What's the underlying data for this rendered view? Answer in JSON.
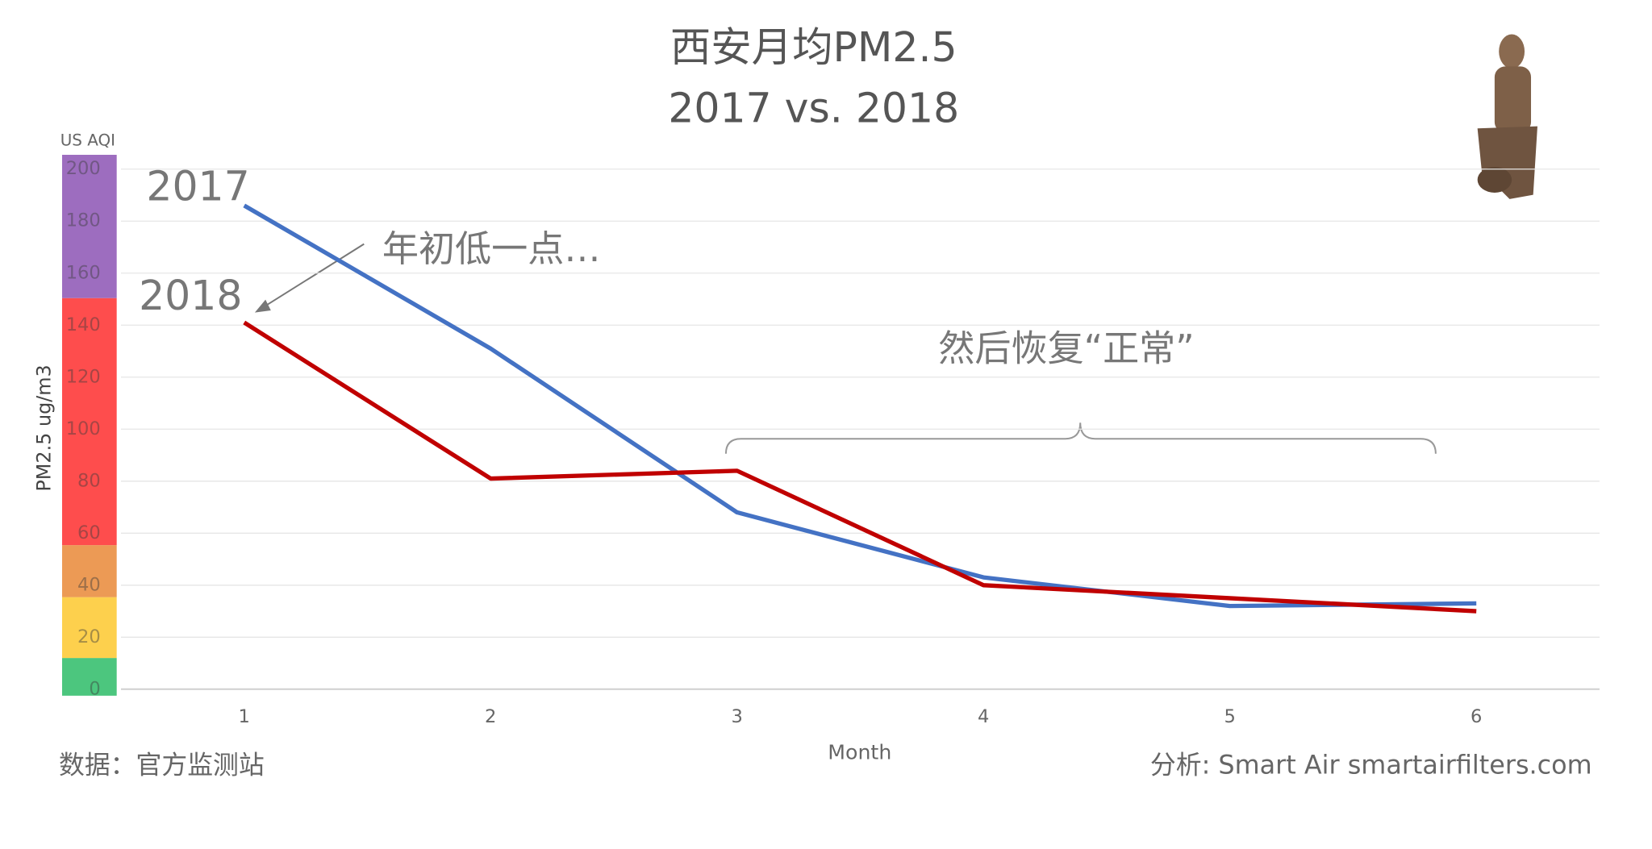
{
  "chart_data": {
    "type": "line",
    "title": "西安月均PM2.5",
    "subtitle": "2017 vs. 2018",
    "x_label": "Month",
    "y_label": "PM2.5 ug/m3",
    "aqi_label": "US AQI",
    "x": [
      1,
      2,
      3,
      4,
      5,
      6
    ],
    "xlim": [
      0.5,
      6.5
    ],
    "xticks": [
      1,
      2,
      3,
      4,
      5,
      6
    ],
    "ylim": [
      0,
      200
    ],
    "yticks": [
      0,
      20,
      40,
      60,
      80,
      100,
      120,
      140,
      160,
      180,
      200
    ],
    "grid": true,
    "series": [
      {
        "name": "2017",
        "color": "#4472c4",
        "values": [
          186,
          131,
          68,
          43,
          32,
          33
        ]
      },
      {
        "name": "2018",
        "color": "#c00000",
        "values": [
          141,
          81,
          84,
          40,
          35,
          30
        ]
      }
    ],
    "aqi_bands": [
      {
        "from": -2.5,
        "to": 12,
        "color": "#4cc67e"
      },
      {
        "from": 12,
        "to": 35.4,
        "color": "#fdd04d"
      },
      {
        "from": 35.4,
        "to": 55.4,
        "color": "#ec9a55"
      },
      {
        "from": 55.4,
        "to": 150.4,
        "color": "#fe4d4d"
      },
      {
        "from": 150.4,
        "to": 205.5,
        "color": "#9d6dbf"
      }
    ],
    "annotations": [
      "年初低一点…",
      "然后恢复“正常”"
    ],
    "source": "数据：官方监测站",
    "credit": "分析: Smart Air smartairfilters.com"
  }
}
